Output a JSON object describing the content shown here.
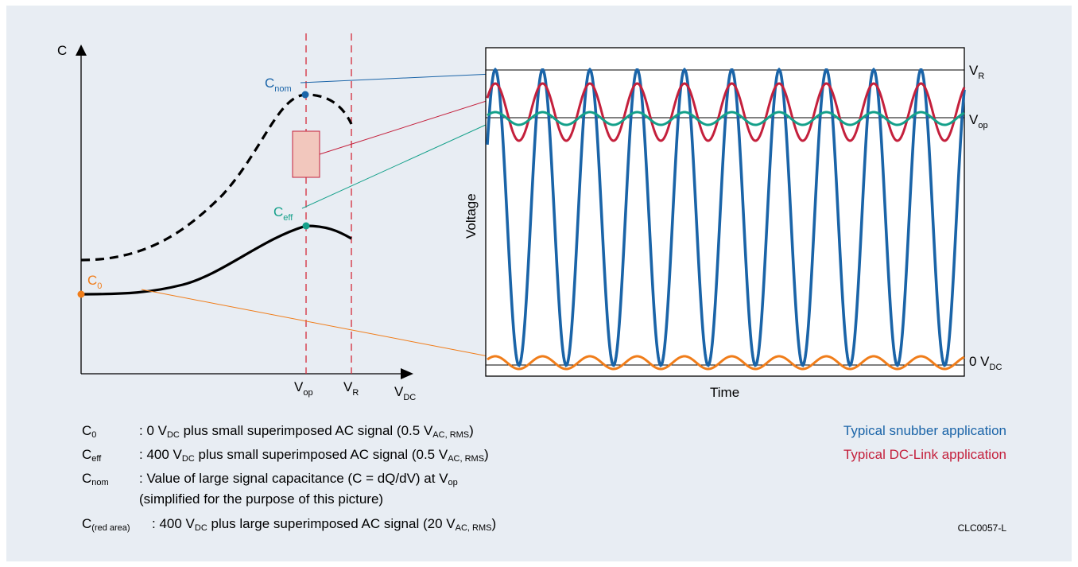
{
  "left_chart": {
    "y_axis_label": "C",
    "x_axis_label_main": "V",
    "x_axis_label_sub": "DC",
    "tick_vop_main": "V",
    "tick_vop_sub": "op",
    "tick_vr_main": "V",
    "tick_vr_sub": "R",
    "cnom_main": "C",
    "cnom_sub": "nom",
    "ceff_main": "C",
    "ceff_sub": "eff",
    "c0_main": "C",
    "c0_sub": "0"
  },
  "right_chart": {
    "y_axis_label": "Voltage",
    "x_axis_label": "Time",
    "vr_main": "V",
    "vr_sub": "R",
    "vop_main": "V",
    "vop_sub": "op",
    "zero_main": "0 V",
    "zero_sub": "DC"
  },
  "colors": {
    "snubber": "#1a64a8",
    "dclink": "#c4203c",
    "ceff": "#14a08a",
    "c0": "#f07d1a",
    "dashed_lines": "#d42a3a",
    "panel_bg": "#e8edf3"
  },
  "legend": {
    "c0_sym": "C",
    "c0_sub": "0",
    "c0_text_a": ": 0 V",
    "c0_text_sub1": "DC",
    "c0_text_b": " plus small superimposed AC signal (0.5 V",
    "c0_text_sub2": "AC, RMS",
    "c0_text_c": ")",
    "ceff_sym": "C",
    "ceff_sub": "eff",
    "ceff_text_a": ": 400 V",
    "ceff_text_sub1": "DC",
    "ceff_text_b": " plus small superimposed AC signal (0.5 V",
    "ceff_text_sub2": "AC, RMS",
    "ceff_text_c": ")",
    "cnom_sym": "C",
    "cnom_sub": "nom",
    "cnom_text_a": ": Value of large signal capacitance (C = dQ/dV) at V",
    "cnom_text_sub": "op",
    "cnom_text_line2": " (simplified for the purpose of this picture)",
    "cred_sym": "C",
    "cred_sub": "(red area)",
    "cred_text_a": ": 400 V",
    "cred_text_sub1": "DC",
    "cred_text_b": " plus large superimposed AC signal (20 V",
    "cred_text_sub2": "AC, RMS",
    "cred_text_c": ")"
  },
  "applications": {
    "snubber": "Typical snubber application",
    "dclink": "Typical DC-Link application"
  },
  "figure_code": "CLC0057-L"
}
